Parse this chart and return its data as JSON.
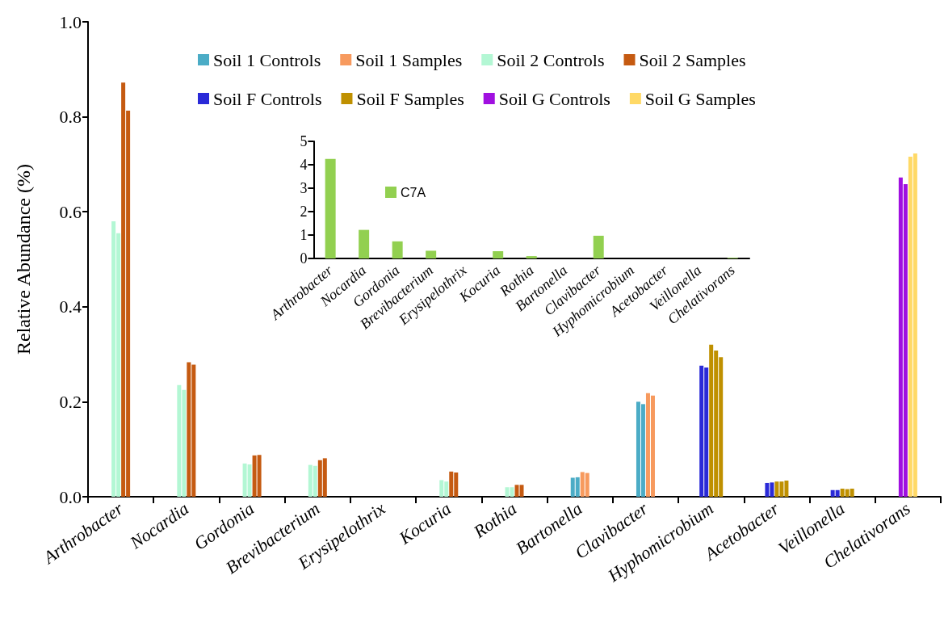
{
  "chart_data": [
    {
      "type": "bar",
      "ylabel": "Relative Abundance (%)",
      "categories": [
        "Arthrobacter",
        "Nocardia",
        "Gordonia",
        "Brevibacterium",
        "Erysipelothrix",
        "Kocuria",
        "Rothia",
        "Bartonella",
        "Clavibacter",
        "Hyphomicrobium",
        "Acetobacter",
        "Veillonella",
        "Chelativorans"
      ],
      "series": [
        {
          "name": "Soil 1 Controls",
          "color": "#4bacc6",
          "values": [
            null,
            null,
            null,
            null,
            null,
            null,
            null,
            0.04,
            0.2,
            null,
            null,
            null,
            null
          ]
        },
        {
          "color": "#4bacc6",
          "values": [
            null,
            null,
            null,
            null,
            null,
            null,
            null,
            0.041,
            0.195,
            null,
            null,
            null,
            null
          ]
        },
        {
          "name": "Soil 1 Samples",
          "color": "#f79a5e",
          "values": [
            null,
            null,
            null,
            null,
            null,
            null,
            null,
            0.052,
            0.218,
            null,
            null,
            null,
            null
          ]
        },
        {
          "color": "#f79a5e",
          "values": [
            null,
            null,
            null,
            null,
            null,
            null,
            null,
            0.05,
            0.213,
            null,
            null,
            null,
            null
          ]
        },
        {
          "name": "Soil 2 Controls",
          "color": "#b3f7d4",
          "values": [
            0.58,
            0.235,
            0.07,
            0.067,
            null,
            0.035,
            0.02,
            null,
            null,
            null,
            null,
            null,
            null
          ]
        },
        {
          "color": "#b3f7d4",
          "values": [
            0.555,
            0.225,
            0.068,
            0.065,
            null,
            0.032,
            0.02,
            null,
            null,
            null,
            null,
            null,
            null
          ]
        },
        {
          "name": "Soil 2 Samples",
          "color": "#c55a11",
          "values": [
            0.872,
            0.283,
            0.087,
            0.077,
            null,
            0.053,
            0.025,
            null,
            null,
            null,
            null,
            null,
            null
          ]
        },
        {
          "color": "#c55a11",
          "values": [
            0.813,
            0.278,
            0.088,
            0.081,
            null,
            0.051,
            0.025,
            null,
            null,
            null,
            null,
            null,
            null
          ]
        },
        {
          "name": "Soil F Controls",
          "color": "#2a2ad8",
          "values": [
            null,
            null,
            null,
            null,
            null,
            null,
            null,
            null,
            null,
            0.276,
            0.029,
            0.014,
            null
          ]
        },
        {
          "color": "#2a2ad8",
          "values": [
            null,
            null,
            null,
            null,
            null,
            null,
            null,
            null,
            null,
            0.272,
            0.03,
            0.014,
            null
          ]
        },
        {
          "name": "Soil F Samples",
          "color": "#bf9000",
          "values": [
            null,
            null,
            null,
            null,
            null,
            null,
            null,
            null,
            null,
            0.32,
            0.032,
            0.017,
            null
          ]
        },
        {
          "color": "#bf9000",
          "values": [
            null,
            null,
            null,
            null,
            null,
            null,
            null,
            null,
            null,
            0.308,
            0.032,
            0.016,
            null
          ]
        },
        {
          "color": "#bf9000",
          "values": [
            null,
            null,
            null,
            null,
            null,
            null,
            null,
            null,
            null,
            0.294,
            0.034,
            0.017,
            null
          ]
        },
        {
          "name": "Soil G Controls",
          "color": "#a010e0",
          "values": [
            null,
            null,
            null,
            null,
            null,
            null,
            null,
            null,
            null,
            null,
            null,
            null,
            0.672
          ]
        },
        {
          "color": "#a010e0",
          "values": [
            null,
            null,
            null,
            null,
            null,
            null,
            null,
            null,
            null,
            null,
            null,
            null,
            0.658
          ]
        },
        {
          "name": "Soil G Samples",
          "color": "#ffd966",
          "values": [
            null,
            null,
            null,
            null,
            null,
            null,
            null,
            null,
            null,
            null,
            null,
            null,
            0.716
          ]
        },
        {
          "color": "#ffd966",
          "values": [
            null,
            null,
            null,
            null,
            null,
            null,
            null,
            null,
            null,
            null,
            null,
            null,
            0.723
          ]
        }
      ],
      "ylim": [
        0,
        1
      ],
      "yticks": [
        {
          "value": 0,
          "label": "0.0"
        },
        0.2,
        0.4,
        0.6,
        0.8,
        {
          "value": 1,
          "label": "1.0"
        }
      ],
      "legend": "top"
    },
    {
      "type": "bar",
      "categories": [
        "Arthrobacter",
        "Nocardia",
        "Gordonia",
        "Brevibacterium",
        "Erysipelothrix",
        "Kocuria",
        "Rothia",
        "Bartonella",
        "Clavibacter",
        "Hyphomicrobium",
        "Acetobacter",
        "Veillonella",
        "Chelativorans"
      ],
      "series": [
        {
          "name": "C7A",
          "color": "#92d050",
          "values": [
            4.25,
            1.22,
            0.73,
            0.33,
            0,
            0.31,
            0.1,
            0,
            0.97,
            0,
            0,
            0,
            0.03
          ]
        }
      ],
      "ylim": [
        0,
        5
      ],
      "yticks": [
        0,
        1,
        2,
        3,
        4,
        5
      ],
      "legend": "left"
    }
  ]
}
